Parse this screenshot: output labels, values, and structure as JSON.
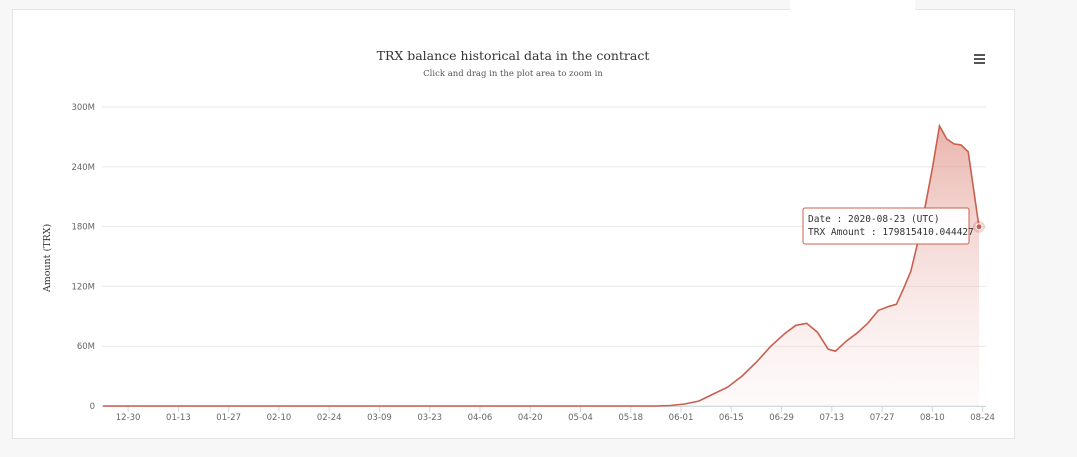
{
  "chart_data": {
    "type": "area",
    "title": "TRX balance historical data in the contract",
    "subtitle": "Click and drag in the plot area to zoom in",
    "ylabel": "Amount (TRX)",
    "xlabel": "",
    "x_start": "2019-12-23",
    "x_end": "2020-08-23",
    "ylim": [
      0,
      300000000
    ],
    "yticks": [
      0,
      60000000,
      120000000,
      180000000,
      240000000,
      300000000
    ],
    "ytick_labels": [
      "0",
      "60M",
      "120M",
      "180M",
      "240M",
      "300M"
    ],
    "xticks": [
      "2019-12-30",
      "2020-01-13",
      "2020-01-27",
      "2020-02-10",
      "2020-02-24",
      "2020-03-09",
      "2020-03-23",
      "2020-04-06",
      "2020-04-20",
      "2020-05-04",
      "2020-05-18",
      "2020-06-01",
      "2020-06-15",
      "2020-06-29",
      "2020-07-13",
      "2020-07-27",
      "2020-08-10",
      "2020-08-24"
    ],
    "xtick_labels": [
      "12-30",
      "01-13",
      "01-27",
      "02-10",
      "02-24",
      "03-09",
      "03-23",
      "04-06",
      "04-20",
      "05-04",
      "05-18",
      "06-01",
      "06-15",
      "06-29",
      "07-13",
      "07-27",
      "08-10",
      "08-24"
    ],
    "grid": true,
    "legend": "none",
    "color": "#c9604f",
    "points": [
      [
        "2019-12-23",
        0
      ],
      [
        "2020-05-25",
        0
      ],
      [
        "2020-05-29",
        500000
      ],
      [
        "2020-06-02",
        2000000
      ],
      [
        "2020-06-06",
        5000000
      ],
      [
        "2020-06-10",
        12000000
      ],
      [
        "2020-06-14",
        19000000
      ],
      [
        "2020-06-18",
        30000000
      ],
      [
        "2020-06-22",
        44000000
      ],
      [
        "2020-06-26",
        60000000
      ],
      [
        "2020-06-30",
        73000000
      ],
      [
        "2020-07-03",
        81000000
      ],
      [
        "2020-07-06",
        83000000
      ],
      [
        "2020-07-09",
        74000000
      ],
      [
        "2020-07-12",
        57000000
      ],
      [
        "2020-07-14",
        55000000
      ],
      [
        "2020-07-17",
        65000000
      ],
      [
        "2020-07-20",
        73000000
      ],
      [
        "2020-07-23",
        83000000
      ],
      [
        "2020-07-26",
        96000000
      ],
      [
        "2020-07-29",
        100000000
      ],
      [
        "2020-07-31",
        102000000
      ],
      [
        "2020-08-02",
        118000000
      ],
      [
        "2020-08-04",
        135000000
      ],
      [
        "2020-08-06",
        165000000
      ],
      [
        "2020-08-08",
        200000000
      ],
      [
        "2020-08-10",
        238000000
      ],
      [
        "2020-08-12",
        281000000
      ],
      [
        "2020-08-14",
        268000000
      ],
      [
        "2020-08-16",
        263000000
      ],
      [
        "2020-08-18",
        262000000
      ],
      [
        "2020-08-20",
        255000000
      ],
      [
        "2020-08-23",
        179815410.044427
      ]
    ],
    "tooltip": {
      "line1": "Date : 2020-08-23 (UTC)",
      "line2": "TRX Amount : 179815410.044427",
      "date": "2020-08-23",
      "value": 179815410.044427
    }
  },
  "menu_icon": "hamburger-menu-icon"
}
